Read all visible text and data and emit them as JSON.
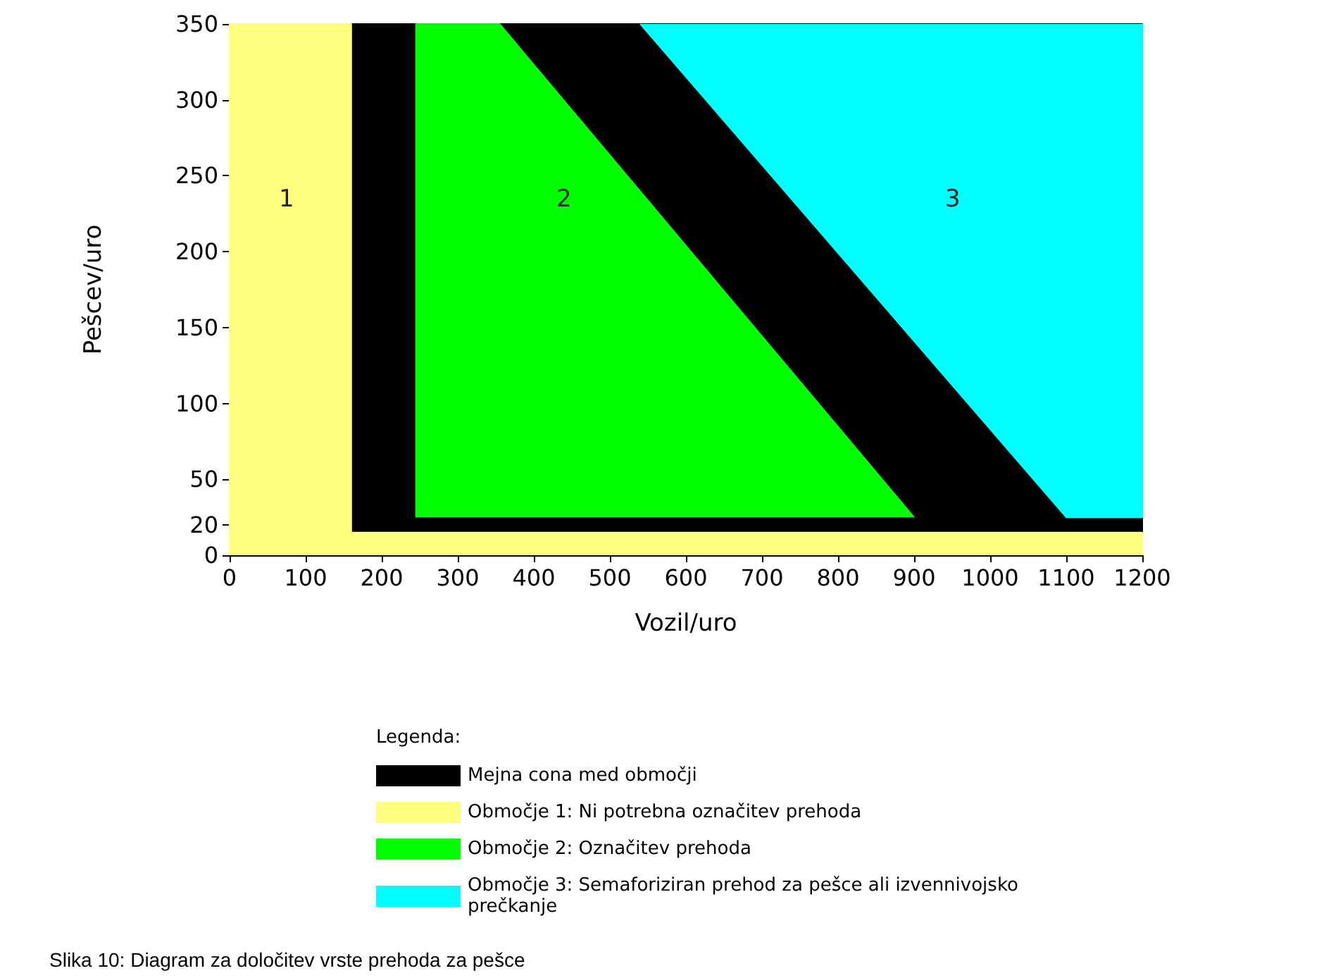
{
  "chart_data": {
    "type": "area",
    "xlabel": "Vozil/uro",
    "ylabel": "Pešcev/uro",
    "legend_title": "Legenda:",
    "xlim": [
      0,
      1200
    ],
    "xticks": [
      0,
      100,
      200,
      300,
      400,
      500,
      600,
      700,
      800,
      900,
      1000,
      1100,
      1200
    ],
    "ylim": [
      0,
      350
    ],
    "yticks": [
      0,
      20,
      50,
      100,
      150,
      200,
      250,
      300,
      350
    ],
    "grid": false,
    "legend": "bottom",
    "series": [
      {
        "name": "Mejna cona med območji",
        "color": "#000000",
        "x": [
          160,
          160,
          1200,
          1200
        ],
        "values": [
          15,
          350,
          350,
          15
        ]
      },
      {
        "name": "Območje 1: Ni potrebna označitev prehoda",
        "color": "#ffff80",
        "x": [
          0,
          0,
          160,
          160,
          1200,
          1200
        ],
        "values": [
          0,
          350,
          350,
          15,
          15,
          0
        ]
      },
      {
        "name": "Območje 2: Označitev prehoda",
        "color": "#00ff00",
        "x": [
          245,
          245,
          355,
          900
        ],
        "values": [
          25,
          350,
          350,
          25
        ]
      },
      {
        "name": "Območje 3: Semaforiziran prehod za pešce ali izvennivojsko prečkanje",
        "color": "#00ffff",
        "x": [
          540,
          1100,
          1200,
          1200
        ],
        "values": [
          350,
          25,
          25,
          350
        ]
      }
    ],
    "annotations": [
      "1",
      "2",
      "3",
      "Slika 10: Diagram za določitev vrste prehoda za pešce"
    ]
  }
}
